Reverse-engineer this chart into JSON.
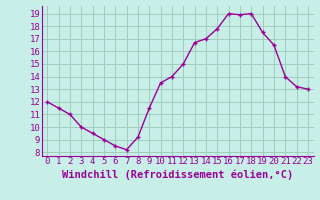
{
  "x": [
    0,
    1,
    2,
    3,
    4,
    5,
    6,
    7,
    8,
    9,
    10,
    11,
    12,
    13,
    14,
    15,
    16,
    17,
    18,
    19,
    20,
    21,
    22,
    23
  ],
  "y": [
    12,
    11.5,
    11,
    10,
    9.5,
    9,
    8.5,
    8.2,
    9.2,
    11.5,
    13.5,
    14,
    15,
    16.7,
    17,
    17.8,
    19,
    18.9,
    19,
    17.5,
    16.5,
    14,
    13.2,
    13
  ],
  "line_color": "#990099",
  "marker": "+",
  "background_color": "#c8eee8",
  "grid_color": "#a0ccbb",
  "xlabel": "Windchill (Refroidissement éolien,°C)",
  "xlabel_color": "#990099",
  "yticks": [
    8,
    9,
    10,
    11,
    12,
    13,
    14,
    15,
    16,
    17,
    18,
    19
  ],
  "xticks": [
    0,
    1,
    2,
    3,
    4,
    5,
    6,
    7,
    8,
    9,
    10,
    11,
    12,
    13,
    14,
    15,
    16,
    17,
    18,
    19,
    20,
    21,
    22,
    23
  ],
  "xlim": [
    -0.5,
    23.5
  ],
  "ylim": [
    7.7,
    19.6
  ],
  "tick_label_color": "#990099",
  "tick_label_fontsize": 6.5,
  "xlabel_fontsize": 7.5,
  "linewidth": 1.0,
  "markersize": 3.5,
  "markeredgewidth": 1.0
}
